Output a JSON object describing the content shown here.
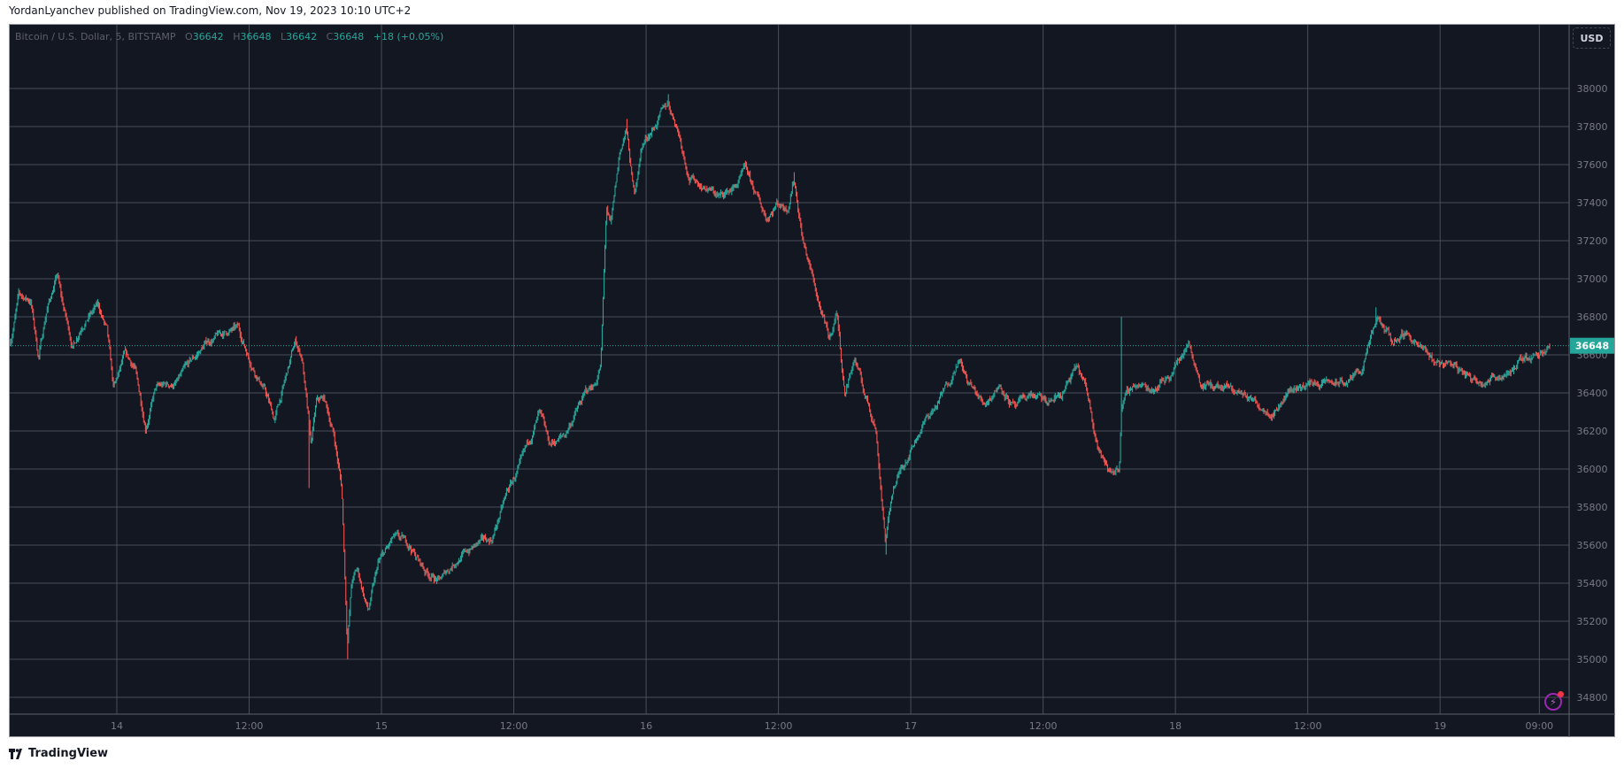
{
  "publisher_line": "YordanLyanchev published on TradingView.com, Nov 19, 2023 10:10 UTC+2",
  "legend": {
    "symbol": "Bitcoin / U.S. Dollar, 5, BITSTAMP",
    "o_label": "O",
    "o": "36642",
    "h_label": "H",
    "h": "36648",
    "l_label": "L",
    "l": "36642",
    "c_label": "C",
    "c": "36648",
    "change": "+18 (+0.05%)"
  },
  "currency_button": "USD",
  "footer_brand": "TradingView",
  "colors": {
    "background": "#131722",
    "up": "#26a69a",
    "down": "#ef5350",
    "grid": "#4a4e59"
  },
  "chart_data": {
    "type": "candlestick",
    "title": "Bitcoin / U.S. Dollar, 5, BITSTAMP",
    "x_unit": "hours since Nov 14 00:00",
    "x_range": [
      -9.8,
      131.7
    ],
    "ylim": [
      34720,
      38180
    ],
    "y_ticks": [
      34800,
      35000,
      35200,
      35400,
      35600,
      35800,
      36000,
      36200,
      36400,
      36600,
      36800,
      37000,
      37200,
      37400,
      37600,
      37800,
      38000
    ],
    "x_ticks": [
      {
        "h": 0,
        "label": "14"
      },
      {
        "h": 12,
        "label": "12:00"
      },
      {
        "h": 24,
        "label": "15"
      },
      {
        "h": 36,
        "label": "12:00"
      },
      {
        "h": 48,
        "label": "16"
      },
      {
        "h": 60,
        "label": "12:00"
      },
      {
        "h": 72,
        "label": "17"
      },
      {
        "h": 84,
        "label": "12:00"
      },
      {
        "h": 96,
        "label": "18"
      },
      {
        "h": 108,
        "label": "12:00"
      },
      {
        "h": 120,
        "label": "19"
      },
      {
        "h": 129,
        "label": "09:00"
      }
    ],
    "last_price": 36648,
    "last_price_label": "36648",
    "price_path": [
      [
        -9.65,
        36668
      ],
      [
        -8.9,
        36910
      ],
      [
        -7.8,
        36885
      ],
      [
        -7.1,
        36586
      ],
      [
        -6.4,
        36830
      ],
      [
        -5.4,
        37020
      ],
      [
        -5.0,
        36885
      ],
      [
        -4.0,
        36640
      ],
      [
        -3.1,
        36776
      ],
      [
        -1.7,
        36857
      ],
      [
        -0.9,
        36722
      ],
      [
        -0.3,
        36406
      ],
      [
        0.7,
        36586
      ],
      [
        1.6,
        36530
      ],
      [
        2.6,
        36230
      ],
      [
        3.5,
        36420
      ],
      [
        5.4,
        36450
      ],
      [
        6.8,
        36560
      ],
      [
        8.2,
        36668
      ],
      [
        10.1,
        36722
      ],
      [
        11.0,
        36733
      ],
      [
        12.0,
        36586
      ],
      [
        13.4,
        36420
      ],
      [
        14.3,
        36257
      ],
      [
        15.2,
        36450
      ],
      [
        16.2,
        36668
      ],
      [
        16.8,
        36586
      ],
      [
        17.6,
        36120
      ],
      [
        18.1,
        36340
      ],
      [
        18.8,
        36365
      ],
      [
        19.7,
        36175
      ],
      [
        20.4,
        35900
      ],
      [
        20.9,
        35090
      ],
      [
        21.3,
        35410
      ],
      [
        21.8,
        35470
      ],
      [
        22.8,
        35250
      ],
      [
        23.7,
        35495
      ],
      [
        25.1,
        35630
      ],
      [
        26.5,
        35600
      ],
      [
        27.9,
        35470
      ],
      [
        29.3,
        35410
      ],
      [
        30.7,
        35520
      ],
      [
        32.6,
        35600
      ],
      [
        34.0,
        35630
      ],
      [
        35.4,
        35875
      ],
      [
        36.8,
        36040
      ],
      [
        38.3,
        36285
      ],
      [
        39.2,
        36120
      ],
      [
        40.6,
        36175
      ],
      [
        41.5,
        36285
      ],
      [
        42.5,
        36395
      ],
      [
        43.4,
        36450
      ],
      [
        43.9,
        36560
      ],
      [
        44.4,
        37375
      ],
      [
        44.8,
        37267
      ],
      [
        45.6,
        37650
      ],
      [
        46.2,
        37787
      ],
      [
        46.9,
        37430
      ],
      [
        47.6,
        37700
      ],
      [
        49.1,
        37838
      ],
      [
        50.0,
        37920
      ],
      [
        50.9,
        37787
      ],
      [
        51.9,
        37540
      ],
      [
        53.3,
        37485
      ],
      [
        54.7,
        37430
      ],
      [
        56.1,
        37485
      ],
      [
        57.0,
        37567
      ],
      [
        58.0,
        37430
      ],
      [
        58.9,
        37321
      ],
      [
        59.9,
        37403
      ],
      [
        60.8,
        37375
      ],
      [
        61.4,
        37540
      ],
      [
        62.2,
        37212
      ],
      [
        63.6,
        36885
      ],
      [
        64.6,
        36668
      ],
      [
        65.3,
        36830
      ],
      [
        66.0,
        36395
      ],
      [
        66.9,
        36586
      ],
      [
        67.8,
        36395
      ],
      [
        68.8,
        36230
      ],
      [
        69.7,
        35630
      ],
      [
        70.4,
        35900
      ],
      [
        71.6,
        36063
      ],
      [
        73.0,
        36230
      ],
      [
        74.4,
        36340
      ],
      [
        75.4,
        36450
      ],
      [
        76.3,
        36586
      ],
      [
        77.2,
        36450
      ],
      [
        78.6,
        36340
      ],
      [
        80.1,
        36450
      ],
      [
        81.5,
        36312
      ],
      [
        82.9,
        36395
      ],
      [
        84.3,
        36340
      ],
      [
        85.7,
        36395
      ],
      [
        87.1,
        36530
      ],
      [
        88.0,
        36395
      ],
      [
        89.0,
        36120
      ],
      [
        89.9,
        35983
      ],
      [
        90.9,
        36010
      ],
      [
        91.1,
        36340
      ],
      [
        92.3,
        36450
      ],
      [
        93.7,
        36420
      ],
      [
        95.6,
        36504
      ],
      [
        97.2,
        36668
      ],
      [
        98.4,
        36450
      ],
      [
        100.3,
        36420
      ],
      [
        102.1,
        36395
      ],
      [
        103.5,
        36340
      ],
      [
        104.9,
        36312
      ],
      [
        106.4,
        36420
      ],
      [
        108.2,
        36450
      ],
      [
        110.1,
        36450
      ],
      [
        111.5,
        36450
      ],
      [
        112.9,
        36530
      ],
      [
        114.3,
        36776
      ],
      [
        115.7,
        36668
      ],
      [
        117.0,
        36722
      ],
      [
        118.1,
        36640
      ],
      [
        119.5,
        36560
      ],
      [
        120.9,
        36560
      ],
      [
        122.8,
        36477
      ],
      [
        124.7,
        36477
      ],
      [
        126.5,
        36530
      ],
      [
        128.0,
        36586
      ],
      [
        129.4,
        36640
      ],
      [
        130.0,
        36648
      ]
    ],
    "wick_extremes": [
      [
        17.4,
        35900
      ],
      [
        20.9,
        35000
      ],
      [
        46.3,
        37840
      ],
      [
        50.0,
        37970
      ],
      [
        61.4,
        37560
      ],
      [
        69.8,
        35550
      ],
      [
        91.1,
        36800
      ],
      [
        114.2,
        36850
      ]
    ]
  }
}
